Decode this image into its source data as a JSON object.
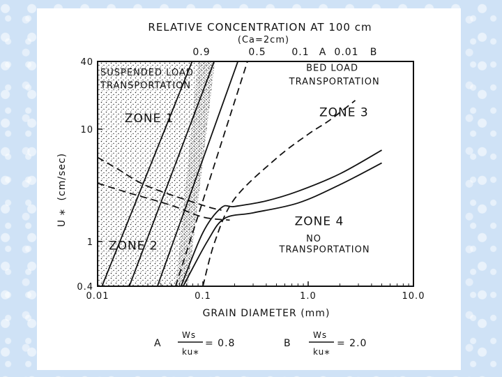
{
  "chart_data": {
    "type": "line",
    "title": "RELATIVE CONCENTRATION AT 100 cm",
    "subtitle": "(Ca=2cm)",
    "xlabel": "GRAIN DIAMETER (mm)",
    "ylabel_main": "U",
    "ylabel_sub": "*",
    "ylabel_units": "(cm/sec)",
    "x_scale": "log",
    "y_scale": "log",
    "xlim": [
      0.01,
      10.0
    ],
    "ylim": [
      0.4,
      40
    ],
    "x_ticks": [
      {
        "value": 0.01,
        "label": "0.01"
      },
      {
        "value": 0.1,
        "label": "0.1"
      },
      {
        "value": 1.0,
        "label": "1.0"
      },
      {
        "value": 10.0,
        "label": "10.0"
      }
    ],
    "y_ticks": [
      {
        "value": 0.4,
        "label": "0.4"
      },
      {
        "value": 1,
        "label": "1"
      },
      {
        "value": 10,
        "label": "10"
      },
      {
        "value": 40,
        "label": "40"
      }
    ],
    "top_labels": [
      {
        "value": 0.9,
        "label": "0.9"
      },
      {
        "value": 0.5,
        "label": "0.5"
      },
      {
        "value": 0.1,
        "label": "0.1"
      },
      {
        "value": "A",
        "label": "A"
      },
      {
        "value": 0.01,
        "label": "0.01"
      },
      {
        "value": "B",
        "label": "B"
      }
    ],
    "series": [
      {
        "name": "0.9",
        "style": "solid",
        "points": [
          [
            0.011,
            0.4
          ],
          [
            0.079,
            40
          ]
        ]
      },
      {
        "name": "0.5",
        "style": "solid",
        "points": [
          [
            0.02,
            0.4
          ],
          [
            0.128,
            40
          ]
        ]
      },
      {
        "name": "0.1",
        "style": "solid",
        "points": [
          [
            0.037,
            0.4
          ],
          [
            0.215,
            40
          ]
        ]
      },
      {
        "name": "0.01",
        "style": "dashed",
        "points": [
          [
            0.055,
            0.4
          ],
          [
            0.265,
            40
          ]
        ]
      },
      {
        "name": "A",
        "style": "solid",
        "points": [
          [
            0.062,
            0.4
          ],
          [
            0.1,
            1.2
          ],
          [
            0.15,
            2.0
          ],
          [
            0.2,
            2.05
          ],
          [
            0.4,
            2.3
          ],
          [
            0.8,
            2.8
          ],
          [
            2.0,
            4.0
          ],
          [
            5.0,
            6.5
          ]
        ]
      },
      {
        "name": "B",
        "style": "dashed",
        "points": [
          [
            0.1,
            0.4
          ],
          [
            0.13,
            1.0
          ],
          [
            0.2,
            2.4
          ],
          [
            0.5,
            5.5
          ],
          [
            1.0,
            9.0
          ],
          [
            1.6,
            12.0
          ],
          [
            2.8,
            18.0
          ]
        ]
      },
      {
        "name": "",
        "style": "solid",
        "points": [
          [
            0.065,
            0.4
          ],
          [
            0.11,
            1.0
          ],
          [
            0.16,
            1.6
          ],
          [
            0.3,
            1.8
          ],
          [
            0.8,
            2.2
          ],
          [
            2.0,
            3.2
          ],
          [
            5.0,
            5.0
          ]
        ]
      },
      {
        "name": "",
        "style": "dashed",
        "points": [
          [
            0.01,
            5.6
          ],
          [
            0.015,
            4.5
          ],
          [
            0.03,
            3.1
          ],
          [
            0.1,
            2.1
          ],
          [
            0.15,
            1.9
          ]
        ]
      },
      {
        "name": "",
        "style": "dashed",
        "points": [
          [
            0.01,
            3.3
          ],
          [
            0.02,
            2.7
          ],
          [
            0.05,
            2.1
          ],
          [
            0.1,
            1.65
          ],
          [
            0.18,
            1.55
          ]
        ]
      }
    ],
    "suspended_region_boundary": [
      [
        0.01,
        40
      ],
      [
        0.13,
        40
      ],
      [
        0.072,
        0.4
      ],
      [
        0.01,
        0.4
      ]
    ],
    "zone_labels": [
      {
        "text": "SUSPENDED LOAD",
        "x": 0.01,
        "y": 30
      },
      {
        "text": "TRANSPORTATION",
        "x": 0.01,
        "y": 23
      },
      {
        "text": "ZONE 1",
        "x": 0.017,
        "y": 11.5
      },
      {
        "text": "ZONE 2",
        "x": 0.012,
        "y": 0.85
      },
      {
        "text": "BED LOAD",
        "x": 0.9,
        "y": 33
      },
      {
        "text": "TRANSPORTATION",
        "x": 0.62,
        "y": 25
      },
      {
        "text": "ZONE 3",
        "x": 1.2,
        "y": 13
      },
      {
        "text": "ZONE 4",
        "x": 0.7,
        "y": 1.4
      },
      {
        "text": "NO",
        "x": 0.9,
        "y": 1.0
      },
      {
        "text": "TRANSPORTATION",
        "x": 0.5,
        "y": 0.8
      }
    ],
    "footnotes": [
      {
        "label": "A",
        "numerator": "Ws",
        "denominator_main": "ku",
        "denominator_sub": "*",
        "rhs": "= 0.8"
      },
      {
        "label": "B",
        "numerator": "Ws",
        "denominator_main": "ku",
        "denominator_sub": "*",
        "rhs": "= 2.0"
      }
    ],
    "legend": "none",
    "grid": false
  }
}
